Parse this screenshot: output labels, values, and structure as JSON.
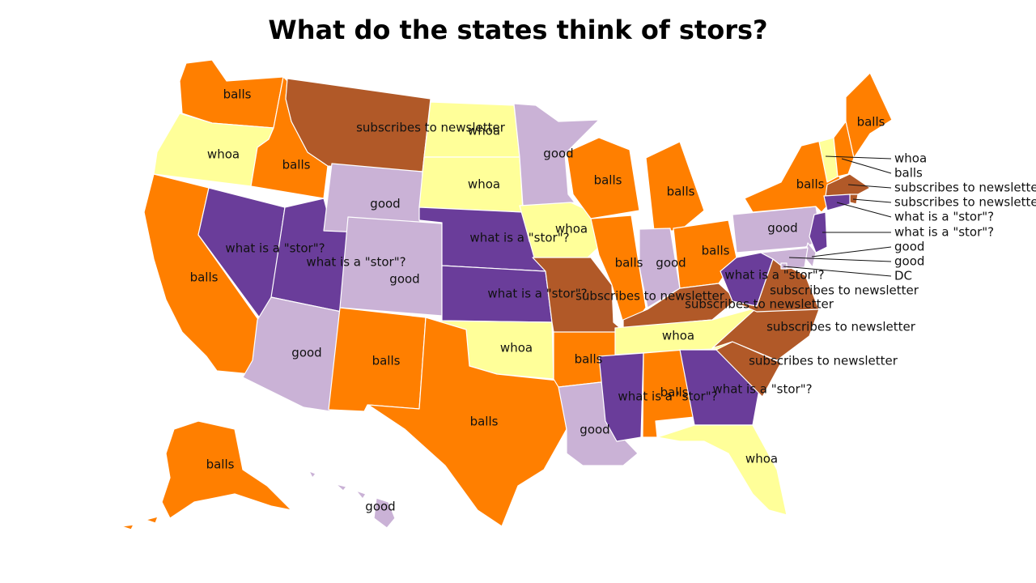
{
  "title": "What do the states think of stors?",
  "colors": {
    "balls": "#ff7f00",
    "whoa": "#ffff99",
    "good": "#cab2d6",
    "stor": "#6a3d9a",
    "newsletter": "#b15928"
  },
  "states": [
    {
      "name": "WA",
      "category": "balls",
      "label": "balls"
    },
    {
      "name": "OR",
      "category": "whoa",
      "label": "whoa"
    },
    {
      "name": "CA",
      "category": "balls",
      "label": "balls"
    },
    {
      "name": "ID",
      "category": "balls",
      "label": "balls"
    },
    {
      "name": "NV",
      "category": "stor",
      "label": "what is a \"stor\"?"
    },
    {
      "name": "UT",
      "category": "stor",
      "label": "what is a \"stor\"?"
    },
    {
      "name": "AZ",
      "category": "good",
      "label": "good"
    },
    {
      "name": "MT",
      "category": "newsletter",
      "label": "subscribes to newsletter"
    },
    {
      "name": "WY",
      "category": "good",
      "label": "good"
    },
    {
      "name": "CO",
      "category": "good",
      "label": "good"
    },
    {
      "name": "NM",
      "category": "balls",
      "label": "balls"
    },
    {
      "name": "ND",
      "category": "whoa",
      "label": "whoa"
    },
    {
      "name": "SD",
      "category": "whoa",
      "label": "whoa"
    },
    {
      "name": "NE",
      "category": "stor",
      "label": "what is a \"stor\"?"
    },
    {
      "name": "KS",
      "category": "stor",
      "label": "what is a \"stor\"?"
    },
    {
      "name": "OK",
      "category": "whoa",
      "label": "whoa"
    },
    {
      "name": "TX",
      "category": "balls",
      "label": "balls"
    },
    {
      "name": "MN",
      "category": "good",
      "label": "good"
    },
    {
      "name": "IA",
      "category": "whoa",
      "label": "whoa"
    },
    {
      "name": "MO",
      "category": "newsletter",
      "label": "subscribes to newsletter"
    },
    {
      "name": "AR",
      "category": "balls",
      "label": "balls"
    },
    {
      "name": "LA",
      "category": "good",
      "label": "good"
    },
    {
      "name": "WI",
      "category": "balls",
      "label": "balls"
    },
    {
      "name": "IL",
      "category": "balls",
      "label": "balls"
    },
    {
      "name": "MI",
      "category": "balls",
      "label": "balls"
    },
    {
      "name": "IN",
      "category": "good",
      "label": "good"
    },
    {
      "name": "OH",
      "category": "balls",
      "label": "balls"
    },
    {
      "name": "KY",
      "category": "newsletter",
      "label": "subscribes to newsletter"
    },
    {
      "name": "TN",
      "category": "whoa",
      "label": "whoa"
    },
    {
      "name": "MS",
      "category": "stor",
      "label": "what is a \"stor\"?"
    },
    {
      "name": "AL",
      "category": "balls",
      "label": "balls"
    },
    {
      "name": "GA",
      "category": "stor",
      "label": "what is a \"stor\"?"
    },
    {
      "name": "FL",
      "category": "whoa",
      "label": "whoa"
    },
    {
      "name": "SC",
      "category": "newsletter",
      "label": "subscribes to newsletter"
    },
    {
      "name": "NC",
      "category": "newsletter",
      "label": "subscribes to newsletter"
    },
    {
      "name": "VA",
      "category": "newsletter",
      "label": "subscribes to newsletter"
    },
    {
      "name": "WV",
      "category": "stor",
      "label": "what is a \"stor\"?"
    },
    {
      "name": "PA",
      "category": "good",
      "label": "good"
    },
    {
      "name": "NY",
      "category": "balls",
      "label": "balls"
    },
    {
      "name": "ME",
      "category": "balls",
      "label": "balls"
    },
    {
      "name": "AK",
      "category": "balls",
      "label": "balls"
    },
    {
      "name": "HI",
      "category": "good",
      "label": "good"
    },
    {
      "name": "VT",
      "category": "whoa",
      "label": "whoa"
    },
    {
      "name": "NH",
      "category": "balls",
      "label": "balls"
    },
    {
      "name": "MA",
      "category": "newsletter",
      "label": "subscribes to newsletter"
    },
    {
      "name": "RI",
      "category": "newsletter",
      "label": "subscribes to newsletter"
    },
    {
      "name": "CT",
      "category": "stor",
      "label": "what is a \"stor\"?"
    },
    {
      "name": "NJ",
      "category": "stor",
      "label": "what is a \"stor\"?"
    },
    {
      "name": "DE",
      "category": "good",
      "label": "good"
    },
    {
      "name": "MD",
      "category": "good",
      "label": "good"
    },
    {
      "name": "DC",
      "category": "good",
      "label": "DC"
    }
  ]
}
